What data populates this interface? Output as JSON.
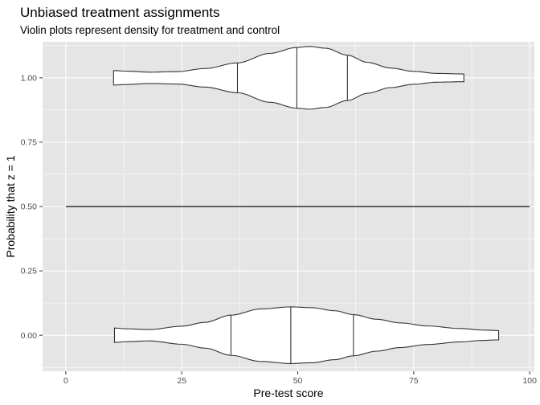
{
  "chart_data": {
    "type": "violin",
    "title": "Unbiased treatment assignments",
    "subtitle": "Violin plots represent density for treatment and control",
    "xlabel": "Pre-test score",
    "ylabel": "Probability that z = 1",
    "xlim": [
      -5,
      101
    ],
    "ylim": [
      -0.14,
      1.14
    ],
    "x_ticks": [
      "0",
      "25",
      "50",
      "75",
      "100"
    ],
    "y_ticks": [
      "0.00",
      "0.25",
      "0.50",
      "0.75",
      "1.00"
    ],
    "grid": true,
    "panel_background": "#e5e5e5",
    "grid_color": "#ffffff",
    "line_color": "#333333",
    "violins": [
      {
        "y": 1.0,
        "x_min": 10.3,
        "x_max": 85.8,
        "quantiles": [
          37.0,
          49.8,
          60.7
        ],
        "profile": [
          [
            10.3,
            0.028
          ],
          [
            13,
            0.026
          ],
          [
            18,
            0.022
          ],
          [
            24,
            0.024
          ],
          [
            30,
            0.036
          ],
          [
            37,
            0.058
          ],
          [
            44,
            0.095
          ],
          [
            49.8,
            0.118
          ],
          [
            52.5,
            0.122
          ],
          [
            56,
            0.115
          ],
          [
            60.7,
            0.088
          ],
          [
            65,
            0.06
          ],
          [
            70,
            0.038
          ],
          [
            75,
            0.025
          ],
          [
            80,
            0.017
          ],
          [
            85.8,
            0.015
          ]
        ]
      },
      {
        "y": 0.0,
        "x_min": 10.5,
        "x_max": 93.3,
        "quantiles": [
          35.6,
          48.5,
          62.0
        ],
        "profile": [
          [
            10.5,
            0.028
          ],
          [
            13,
            0.025
          ],
          [
            18,
            0.022
          ],
          [
            25,
            0.035
          ],
          [
            30,
            0.05
          ],
          [
            35.6,
            0.078
          ],
          [
            42,
            0.102
          ],
          [
            48.5,
            0.11
          ],
          [
            53,
            0.107
          ],
          [
            58,
            0.095
          ],
          [
            62,
            0.08
          ],
          [
            67,
            0.062
          ],
          [
            72,
            0.048
          ],
          [
            78,
            0.036
          ],
          [
            85,
            0.026
          ],
          [
            90,
            0.02
          ],
          [
            93.3,
            0.018
          ]
        ]
      }
    ],
    "reference_line": {
      "x": [
        0,
        100
      ],
      "y": 0.5
    }
  }
}
